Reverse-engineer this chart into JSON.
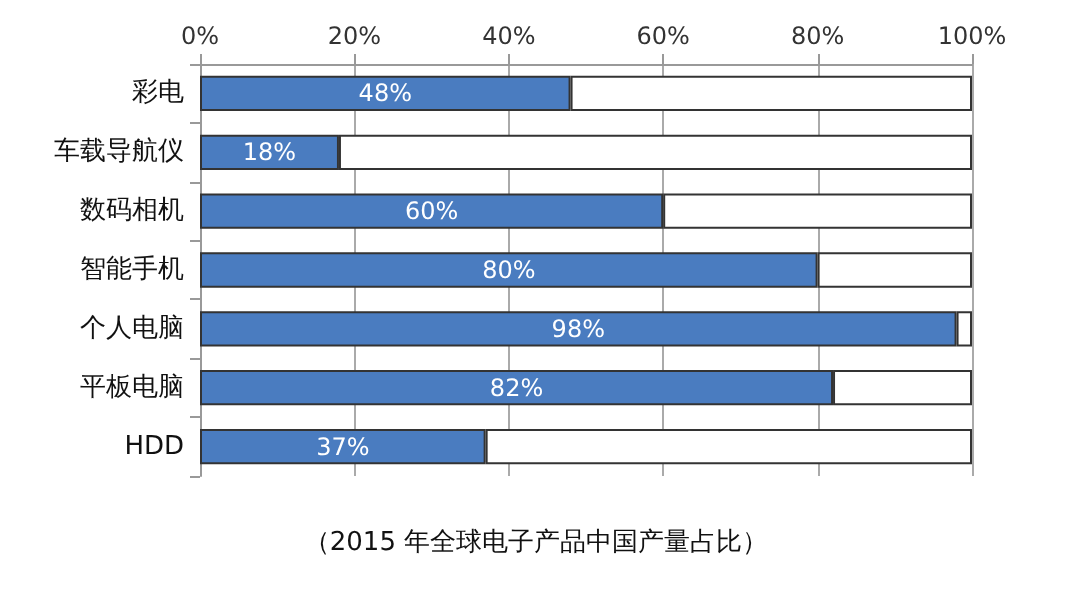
{
  "chart_data": {
    "type": "bar",
    "orientation": "horizontal",
    "stacked": true,
    "categories": [
      "彩电",
      "车载导航仪",
      "数码相机",
      "智能手机",
      "个人电脑",
      "平板电脑",
      "HDD"
    ],
    "series": [
      {
        "color": "#4a7cc0",
        "values": [
          48,
          18,
          60,
          80,
          98,
          82,
          37
        ],
        "value_labels": [
          "48%",
          "18%",
          "60%",
          "80%",
          "98%",
          "82%",
          "37%"
        ]
      },
      {
        "color": "#ffffff",
        "values": [
          52,
          82,
          40,
          20,
          2,
          18,
          63
        ]
      }
    ],
    "xlim": [
      0,
      100
    ],
    "xticks": [
      {
        "value": 0,
        "label": "0%"
      },
      {
        "value": 20,
        "label": "20%"
      },
      {
        "value": 40,
        "label": "40%"
      },
      {
        "value": 60,
        "label": "60%"
      },
      {
        "value": 80,
        "label": "80%"
      },
      {
        "value": 100,
        "label": "100%"
      }
    ],
    "grid": "x",
    "annotations": [
      "（2015 年全球电子产品中国产量占比）"
    ]
  }
}
